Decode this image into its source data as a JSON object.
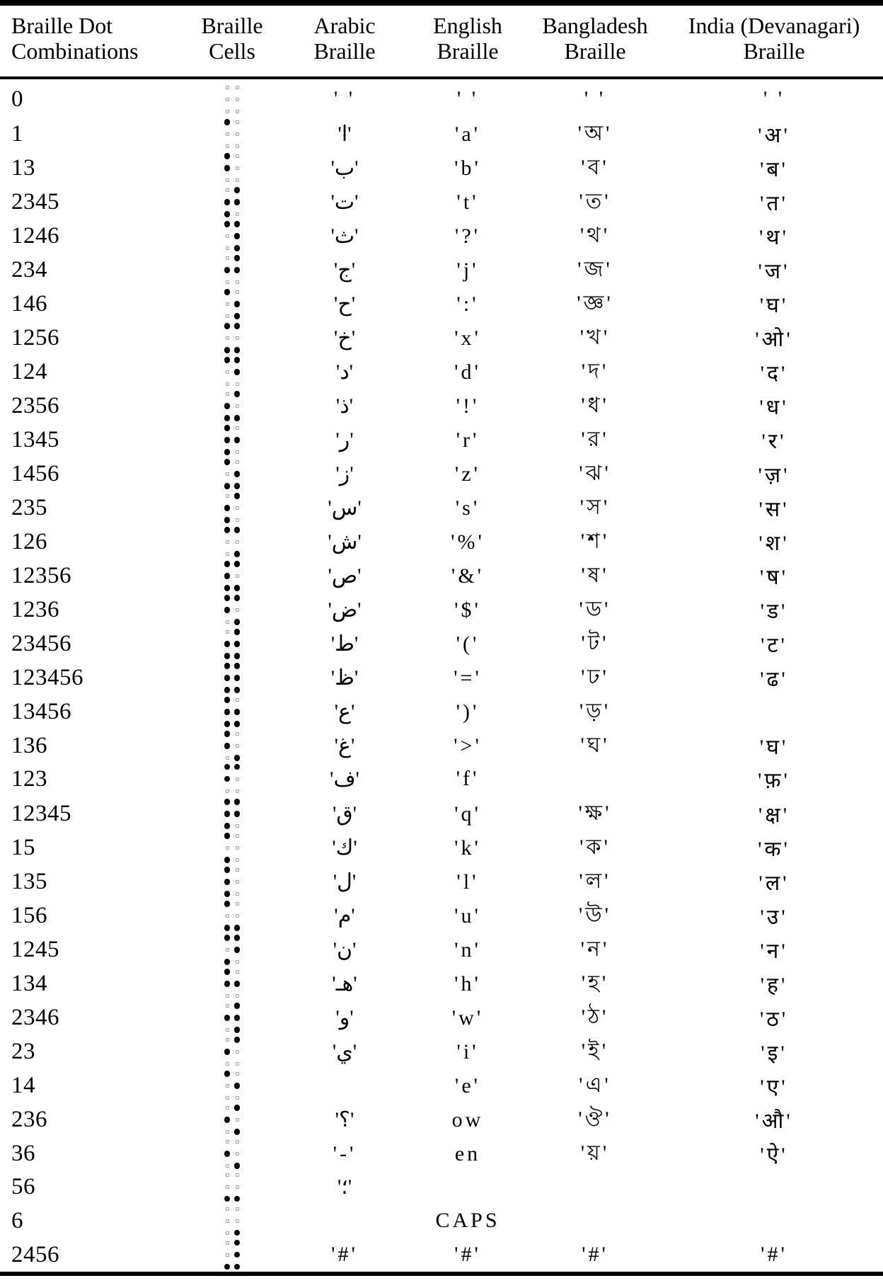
{
  "colors": {
    "background": "#ffffff",
    "text": "#000000",
    "rule": "#000000",
    "filled_dot": "#000000",
    "empty_dot": "#9a9a9a"
  },
  "header": {
    "columns": [
      "Braille Dot\nCombinations",
      "Braille\nCells",
      "Arabic\nBraille",
      "English\nBraille",
      "Bangladesh\nBraille",
      "India (Devanagari)\nBraille"
    ]
  },
  "braille_cell": {
    "dot_positions_row_major": [
      "1",
      "2",
      "3",
      "4",
      "5",
      "6"
    ]
  },
  "rows": [
    {
      "dots": "0",
      "arabic": "' '",
      "english": "' '",
      "bangladesh": "' '",
      "india": "' '"
    },
    {
      "dots": "1",
      "arabic": "'ا'",
      "english": "'a'",
      "bangladesh": "'অ'",
      "india": "'अ'"
    },
    {
      "dots": "13",
      "arabic": "'ب'",
      "english": "'b'",
      "bangladesh": "'ব'",
      "india": "'ब'"
    },
    {
      "dots": "2345",
      "arabic": "'ت'",
      "english": "'t'",
      "bangladesh": "'ত'",
      "india": "'त'"
    },
    {
      "dots": "1246",
      "arabic": "'ث'",
      "english": "'?'",
      "bangladesh": "'থ'",
      "india": "'थ'"
    },
    {
      "dots": "234",
      "arabic": "'ج'",
      "english": "'j'",
      "bangladesh": "'জ'",
      "india": "'ज'"
    },
    {
      "dots": "146",
      "arabic": "'ح'",
      "english": "':'",
      "bangladesh": "'জ্ঞ'",
      "india": "'घ'"
    },
    {
      "dots": "1256",
      "arabic": "'خ'",
      "english": "'x'",
      "bangladesh": "'খ'",
      "india": "'ओ'"
    },
    {
      "dots": "124",
      "arabic": "'د'",
      "english": "'d'",
      "bangladesh": "'দ'",
      "india": "'द'"
    },
    {
      "dots": "2356",
      "arabic": "'ذ'",
      "english": "'!'",
      "bangladesh": "'ধ'",
      "india": "'ध'"
    },
    {
      "dots": "1345",
      "arabic": "'ر'",
      "english": "'r'",
      "bangladesh": "'র'",
      "india": "'र'"
    },
    {
      "dots": "1456",
      "arabic": "'ز'",
      "english": "'z'",
      "bangladesh": "'ঝ'",
      "india": "'ज़'"
    },
    {
      "dots": "235",
      "arabic": "'س'",
      "english": "'s'",
      "bangladesh": "'স'",
      "india": "'स'"
    },
    {
      "dots": "126",
      "arabic": "'ش'",
      "english": "'%'",
      "bangladesh": "'শ'",
      "india": "'श'"
    },
    {
      "dots": "12356",
      "arabic": "'ص'",
      "english": "'&'",
      "bangladesh": "'ষ'",
      "india": "'ष'"
    },
    {
      "dots": "1236",
      "arabic": "'ض'",
      "english": "'$'",
      "bangladesh": "'ড'",
      "india": "'ड'"
    },
    {
      "dots": "23456",
      "arabic": "'ط'",
      "english": "'('",
      "bangladesh": "'ট'",
      "india": "'ट'"
    },
    {
      "dots": "123456",
      "arabic": "'ظ'",
      "english": "'='",
      "bangladesh": "'ঢ'",
      "india": "'ढ'"
    },
    {
      "dots": "13456",
      "arabic": "'ع'",
      "english": "')'",
      "bangladesh": "'ড়'",
      "india": ""
    },
    {
      "dots": "136",
      "arabic": "'غ'",
      "english": "'>'",
      "bangladesh": "'ঘ'",
      "india": "'घ'"
    },
    {
      "dots": "123",
      "arabic": "'ف'",
      "english": "'f'",
      "bangladesh": "",
      "india": "'फ़'"
    },
    {
      "dots": "12345",
      "arabic": "'ق'",
      "english": "'q'",
      "bangladesh": "'ক্ষ'",
      "india": "'क्ष'"
    },
    {
      "dots": "15",
      "arabic": "'ك'",
      "english": "'k'",
      "bangladesh": "'ক'",
      "india": "'क'"
    },
    {
      "dots": "135",
      "arabic": "'ل'",
      "english": "'l'",
      "bangladesh": "'ল'",
      "india": "'ल'"
    },
    {
      "dots": "156",
      "arabic": "'م'",
      "english": "'u'",
      "bangladesh": "'উ'",
      "india": "'उ'"
    },
    {
      "dots": "1245",
      "arabic": "'ن'",
      "english": "'n'",
      "bangladesh": "'ন'",
      "india": "'न'"
    },
    {
      "dots": "134",
      "arabic": "'هـ'",
      "english": "'h'",
      "bangladesh": "'হ'",
      "india": "'ह'"
    },
    {
      "dots": "2346",
      "arabic": "'و'",
      "english": "'w'",
      "bangladesh": "'ঠ'",
      "india": "'ठ'"
    },
    {
      "dots": "23",
      "arabic": "'ي'",
      "english": "'i'",
      "bangladesh": "'ই'",
      "india": "'इ'"
    },
    {
      "dots": "14",
      "arabic": "",
      "english": "'e'",
      "bangladesh": "'এ'",
      "india": "'ए'"
    },
    {
      "dots": "236",
      "arabic": "'؟'",
      "english": "ow",
      "bangladesh": "'ঔ'",
      "india": "'औ'"
    },
    {
      "dots": "36",
      "arabic": "'-'",
      "english": "en",
      "bangladesh": "'য়'",
      "india": "'ऐ'"
    },
    {
      "dots": "56",
      "arabic": "'؛'",
      "english": "",
      "bangladesh": "",
      "india": ""
    },
    {
      "dots": "6",
      "arabic": "",
      "english": "CAPS",
      "bangladesh": "",
      "india": ""
    },
    {
      "dots": "2456",
      "arabic": "'#'",
      "english": "'#'",
      "bangladesh": "'#'",
      "india": "'#'"
    }
  ]
}
